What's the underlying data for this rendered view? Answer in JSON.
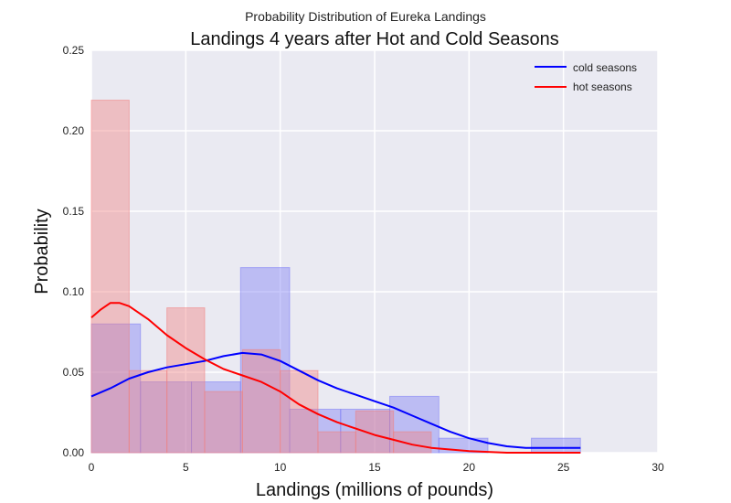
{
  "chart_data": {
    "type": "bar",
    "suptitle": "Probability Distribution of Eureka Landings",
    "title": "Landings 4 years after Hot and Cold Seasons",
    "xlabel": "Landings (millions of pounds)",
    "ylabel": "Probability",
    "xlim": [
      0,
      30
    ],
    "ylim": [
      0,
      0.25
    ],
    "xticks": [
      "0",
      "5",
      "10",
      "15",
      "20",
      "25",
      "30"
    ],
    "yticks": [
      "0.00",
      "0.05",
      "0.10",
      "0.15",
      "0.20",
      "0.25"
    ],
    "grid": true,
    "legend_position": "top-right",
    "legend": [
      "cold seasons",
      "hot seasons"
    ],
    "series": [
      {
        "name": "cold seasons",
        "line_color": "#0000ff",
        "bar_color": "#7b7bf5",
        "histogram": [
          {
            "x0": 0.0,
            "x1": 2.6,
            "y": 0.08
          },
          {
            "x0": 2.6,
            "x1": 5.3,
            "y": 0.044
          },
          {
            "x0": 5.3,
            "x1": 7.9,
            "y": 0.044
          },
          {
            "x0": 7.9,
            "x1": 10.5,
            "y": 0.115
          },
          {
            "x0": 10.5,
            "x1": 13.2,
            "y": 0.027
          },
          {
            "x0": 13.2,
            "x1": 15.8,
            "y": 0.027
          },
          {
            "x0": 15.8,
            "x1": 18.4,
            "y": 0.035
          },
          {
            "x0": 18.4,
            "x1": 21.0,
            "y": 0.009
          },
          {
            "x0": 23.3,
            "x1": 25.9,
            "y": 0.009
          }
        ],
        "kde_x": [
          0,
          1,
          2,
          3,
          4,
          5,
          6,
          7,
          8,
          9,
          10,
          11,
          12,
          13,
          14,
          15,
          16,
          17,
          18,
          19,
          20,
          21,
          22,
          23,
          24,
          25,
          25.9
        ],
        "kde_y": [
          0.035,
          0.04,
          0.046,
          0.05,
          0.053,
          0.055,
          0.057,
          0.06,
          0.062,
          0.061,
          0.057,
          0.051,
          0.045,
          0.04,
          0.036,
          0.032,
          0.028,
          0.023,
          0.018,
          0.013,
          0.009,
          0.006,
          0.004,
          0.003,
          0.003,
          0.003,
          0.003
        ]
      },
      {
        "name": "hot seasons",
        "line_color": "#ff0000",
        "bar_color": "#f08080",
        "histogram": [
          {
            "x0": 0.0,
            "x1": 2.0,
            "y": 0.219
          },
          {
            "x0": 2.0,
            "x1": 4.0,
            "y": 0.051
          },
          {
            "x0": 4.0,
            "x1": 6.0,
            "y": 0.09
          },
          {
            "x0": 6.0,
            "x1": 8.0,
            "y": 0.038
          },
          {
            "x0": 8.0,
            "x1": 10.0,
            "y": 0.064
          },
          {
            "x0": 10.0,
            "x1": 12.0,
            "y": 0.051
          },
          {
            "x0": 12.0,
            "x1": 14.0,
            "y": 0.013
          },
          {
            "x0": 14.0,
            "x1": 16.0,
            "y": 0.026
          },
          {
            "x0": 16.0,
            "x1": 18.0,
            "y": 0.013
          }
        ],
        "kde_x": [
          0,
          0.5,
          1,
          1.5,
          2,
          3,
          4,
          5,
          6,
          7,
          8,
          9,
          10,
          11,
          12,
          13,
          14,
          15,
          16,
          17,
          18,
          19,
          20,
          21,
          22,
          23,
          24,
          25,
          25.9
        ],
        "kde_y": [
          0.084,
          0.089,
          0.093,
          0.093,
          0.091,
          0.083,
          0.073,
          0.065,
          0.058,
          0.052,
          0.048,
          0.044,
          0.038,
          0.03,
          0.024,
          0.019,
          0.015,
          0.011,
          0.008,
          0.005,
          0.003,
          0.002,
          0.001,
          0.0005,
          0.0,
          0.0,
          0.0,
          0.0,
          0.0
        ]
      }
    ]
  }
}
